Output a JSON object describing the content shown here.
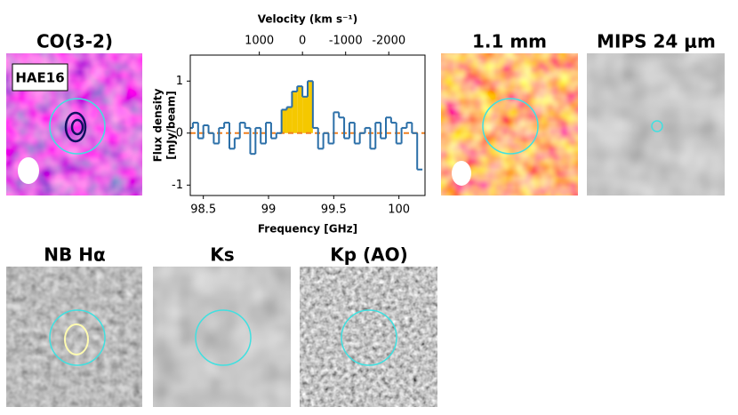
{
  "panels": [
    {
      "title": "CO(3-2)",
      "label": "HAE16"
    },
    {
      "title": "1.1 mm"
    },
    {
      "title": "MIPS 24 μm"
    },
    {
      "title": "NB Hα"
    },
    {
      "title": "Ks"
    },
    {
      "title": "Kp (AO)"
    }
  ],
  "chart_data": {
    "type": "step",
    "xlabel": "Frequency [GHz]",
    "ylabel": [
      "Flux density",
      "[mJy/beam]"
    ],
    "x2label": "Velocity (km s⁻¹)",
    "xlim": [
      98.4,
      100.2
    ],
    "xticks": [
      98.5,
      99,
      99.5,
      100
    ],
    "x2lim": [
      2600,
      -2840
    ],
    "x2ticks": [
      1000,
      0,
      -1000,
      -2000
    ],
    "ylim": [
      -1.2,
      1.5
    ],
    "yticks": [
      -1,
      0,
      1
    ],
    "x": [
      98.4,
      98.44,
      98.48,
      98.52,
      98.56,
      98.6,
      98.64,
      98.68,
      98.72,
      98.76,
      98.8,
      98.84,
      98.88,
      98.92,
      98.96,
      99.0,
      99.04,
      99.08,
      99.12,
      99.16,
      99.2,
      99.24,
      99.28,
      99.32,
      99.36,
      99.4,
      99.44,
      99.48,
      99.52,
      99.56,
      99.6,
      99.64,
      99.68,
      99.72,
      99.76,
      99.8,
      99.84,
      99.88,
      99.92,
      99.96,
      100.0,
      100.04,
      100.08,
      100.12,
      100.16
    ],
    "series": [
      {
        "color": "#2b6fa8",
        "values": [
          0.1,
          0.2,
          -0.1,
          0.15,
          0.0,
          -0.2,
          0.1,
          0.2,
          -0.3,
          -0.1,
          0.2,
          0.1,
          -0.4,
          0.1,
          -0.2,
          0.2,
          -0.1,
          0.0,
          0.45,
          0.5,
          0.8,
          0.9,
          0.7,
          1.0,
          0.1,
          -0.3,
          0.0,
          -0.2,
          0.4,
          0.3,
          -0.1,
          0.2,
          -0.2,
          0.0,
          0.1,
          -0.3,
          0.2,
          -0.1,
          0.3,
          0.2,
          -0.2,
          0.1,
          0.2,
          0.0,
          -0.7
        ]
      }
    ],
    "fill_color": "#f5c800",
    "zero_color": "#f08020"
  }
}
